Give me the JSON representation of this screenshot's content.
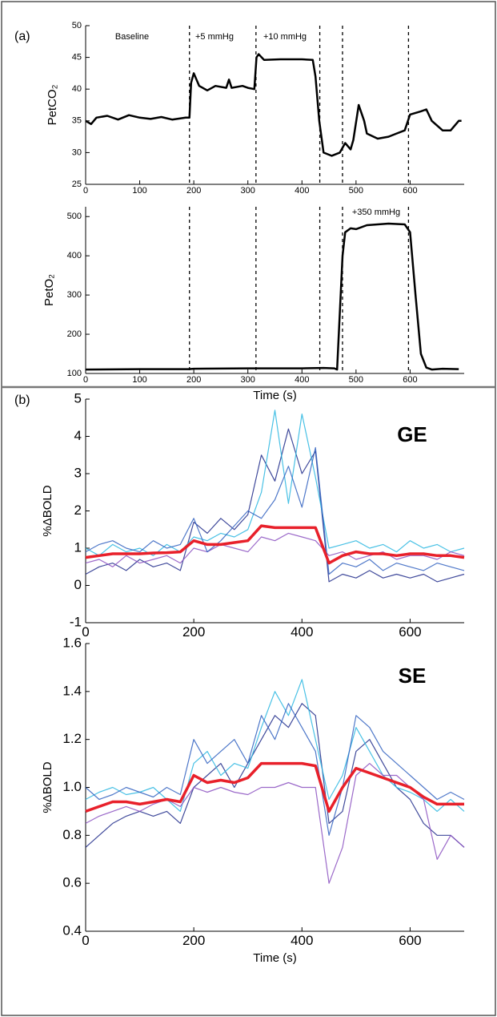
{
  "panel_labels": [
    "(a)",
    "(b)"
  ],
  "chart_data": [
    {
      "type": "line",
      "ylabel": "PetCO₂",
      "annotations": [
        "Baseline",
        "+5 mmHg",
        "+10 mmHg"
      ],
      "x": [
        0,
        10,
        20,
        40,
        60,
        80,
        100,
        120,
        140,
        160,
        185,
        192,
        195,
        200,
        210,
        225,
        240,
        260,
        265,
        270,
        290,
        300,
        312,
        316,
        320,
        330,
        360,
        400,
        420,
        425,
        432,
        440,
        455,
        470,
        480,
        490,
        495,
        505,
        515,
        520,
        540,
        560,
        575,
        590,
        600,
        620,
        630,
        640,
        660,
        675,
        690,
        695
      ],
      "values": [
        35,
        34.5,
        35.5,
        35.8,
        35.2,
        35.9,
        35.5,
        35.3,
        35.6,
        35.2,
        35.5,
        35.5,
        41,
        42.5,
        40.5,
        39.8,
        40.5,
        40.2,
        41.5,
        40.2,
        40.5,
        40.2,
        40,
        45,
        45.5,
        44.6,
        44.7,
        44.7,
        44.6,
        42,
        35,
        30,
        29.5,
        30,
        31.5,
        30.5,
        32,
        37.5,
        35,
        33,
        32.2,
        32.5,
        33,
        33.5,
        36,
        36.5,
        36.8,
        35,
        33.5,
        33.5,
        35,
        35
      ],
      "color": "#000000",
      "vlines": [
        192,
        315,
        433,
        475,
        597
      ],
      "xlim": [
        0,
        700
      ],
      "ylim": [
        25,
        50
      ],
      "xticks": [
        0,
        100,
        200,
        300,
        400,
        500,
        600
      ],
      "yticks": [
        25,
        30,
        35,
        40,
        45,
        50
      ]
    },
    {
      "type": "line",
      "ylabel": "PetO₂",
      "xlabel": "Time (s)",
      "annotations": [
        "+350 mmHg"
      ],
      "x": [
        0,
        100,
        190,
        200,
        300,
        400,
        440,
        460,
        465,
        475,
        480,
        490,
        500,
        520,
        560,
        590,
        600,
        610,
        620,
        630,
        640,
        660,
        690
      ],
      "values": [
        110,
        111,
        111,
        112,
        113,
        113,
        114,
        113,
        110,
        400,
        460,
        470,
        468,
        478,
        482,
        480,
        460,
        300,
        150,
        115,
        110,
        112,
        111
      ],
      "color": "#000000",
      "vlines": [
        192,
        315,
        433,
        475,
        597
      ],
      "xlim": [
        0,
        700
      ],
      "ylim": [
        100,
        525
      ],
      "xticks": [
        0,
        100,
        200,
        300,
        400,
        500,
        600
      ],
      "yticks": [
        100,
        200,
        300,
        400,
        500
      ]
    },
    {
      "type": "line",
      "ylabel": "%ΔBOLD",
      "panel_title": "GE",
      "x": [
        0,
        25,
        50,
        75,
        100,
        125,
        150,
        175,
        200,
        225,
        250,
        275,
        300,
        325,
        350,
        375,
        400,
        425,
        450,
        475,
        500,
        525,
        550,
        575,
        600,
        625,
        650,
        675,
        700
      ],
      "series": [
        {
          "color": "#1f2a8a",
          "values": [
            0.3,
            0.5,
            0.6,
            0.4,
            0.7,
            0.5,
            0.6,
            0.4,
            1.7,
            1.4,
            1.8,
            1.5,
            1.9,
            3.5,
            2.8,
            4.2,
            3.0,
            3.6,
            0.1,
            0.3,
            0.2,
            0.4,
            0.2,
            0.3,
            0.2,
            0.3,
            0.1,
            0.2,
            0.3
          ]
        },
        {
          "color": "#29b6e0",
          "values": [
            1.0,
            0.8,
            1.1,
            0.9,
            1.0,
            0.8,
            1.1,
            0.9,
            1.3,
            1.2,
            1.4,
            1.3,
            1.5,
            2.5,
            4.7,
            2.2,
            4.6,
            2.9,
            1.0,
            1.1,
            1.2,
            1.0,
            1.1,
            0.9,
            1.2,
            1.0,
            1.1,
            0.9,
            1.0
          ]
        },
        {
          "color": "#8a4fbf",
          "values": [
            0.6,
            0.7,
            0.5,
            0.8,
            0.6,
            0.7,
            0.8,
            0.6,
            1.0,
            0.9,
            1.1,
            1.0,
            0.9,
            1.3,
            1.2,
            1.4,
            1.3,
            1.2,
            0.8,
            0.9,
            0.7,
            0.8,
            0.9,
            0.7,
            0.8,
            0.8,
            0.7,
            0.9,
            0.8
          ]
        },
        {
          "color": "#3060c0",
          "values": [
            0.9,
            1.1,
            1.2,
            1.0,
            0.9,
            1.2,
            1.0,
            1.1,
            1.8,
            0.9,
            1.2,
            1.6,
            2.0,
            1.8,
            2.3,
            3.2,
            2.1,
            3.7,
            0.3,
            0.6,
            0.5,
            0.7,
            0.4,
            0.6,
            0.5,
            0.4,
            0.6,
            0.5,
            0.4
          ]
        },
        {
          "color": "#e8202a",
          "values": [
            0.75,
            0.8,
            0.85,
            0.85,
            0.85,
            0.87,
            0.88,
            0.9,
            1.2,
            1.1,
            1.1,
            1.15,
            1.2,
            1.6,
            1.55,
            1.55,
            1.55,
            1.55,
            0.6,
            0.8,
            0.9,
            0.85,
            0.85,
            0.8,
            0.85,
            0.85,
            0.8,
            0.8,
            0.75
          ]
        }
      ],
      "xlim": [
        0,
        700
      ],
      "ylim": [
        -1,
        5
      ],
      "xticks": [
        0,
        200,
        400,
        600
      ],
      "yticks": [
        -1,
        0,
        1,
        2,
        3,
        4,
        5
      ]
    },
    {
      "type": "line",
      "ylabel": "%ΔBOLD",
      "xlabel": "Time (s)",
      "panel_title": "SE",
      "x": [
        0,
        25,
        50,
        75,
        100,
        125,
        150,
        175,
        200,
        225,
        250,
        275,
        300,
        325,
        350,
        375,
        400,
        425,
        450,
        475,
        500,
        525,
        550,
        575,
        600,
        625,
        650,
        675,
        700
      ],
      "series": [
        {
          "color": "#1f2a8a",
          "values": [
            0.75,
            0.8,
            0.85,
            0.88,
            0.9,
            0.88,
            0.9,
            0.85,
            1.0,
            1.05,
            1.1,
            1.0,
            1.1,
            1.2,
            1.3,
            1.25,
            1.35,
            1.3,
            0.85,
            0.9,
            1.15,
            1.2,
            1.1,
            1.0,
            0.95,
            0.85,
            0.8,
            0.8,
            0.75
          ]
        },
        {
          "color": "#29b6e0",
          "values": [
            0.95,
            0.98,
            1.0,
            0.97,
            0.98,
            1.0,
            0.95,
            0.9,
            1.1,
            1.15,
            1.05,
            1.1,
            1.08,
            1.25,
            1.4,
            1.3,
            1.45,
            1.2,
            0.95,
            1.05,
            1.25,
            1.15,
            1.05,
            1.0,
            0.98,
            0.95,
            0.9,
            0.95,
            0.9
          ]
        },
        {
          "color": "#8a4fbf",
          "values": [
            0.85,
            0.88,
            0.9,
            0.92,
            0.9,
            0.93,
            0.95,
            0.92,
            1.0,
            0.98,
            1.0,
            0.98,
            0.97,
            1.0,
            1.0,
            1.02,
            1.0,
            1.0,
            0.6,
            0.75,
            1.05,
            1.1,
            1.05,
            1.05,
            1.0,
            0.95,
            0.7,
            0.8,
            0.75
          ]
        },
        {
          "color": "#3060c0",
          "values": [
            1.0,
            0.95,
            0.97,
            1.0,
            0.98,
            0.96,
            1.0,
            0.97,
            1.2,
            1.1,
            1.15,
            1.2,
            1.1,
            1.3,
            1.2,
            1.35,
            1.25,
            1.15,
            0.8,
            1.0,
            1.3,
            1.25,
            1.15,
            1.1,
            1.05,
            1.0,
            0.95,
            0.98,
            0.95
          ]
        },
        {
          "color": "#e8202a",
          "values": [
            0.9,
            0.92,
            0.94,
            0.94,
            0.93,
            0.94,
            0.95,
            0.94,
            1.05,
            1.02,
            1.03,
            1.02,
            1.04,
            1.1,
            1.1,
            1.1,
            1.1,
            1.09,
            0.9,
            1.0,
            1.08,
            1.06,
            1.04,
            1.02,
            1.0,
            0.96,
            0.93,
            0.93,
            0.93
          ]
        }
      ],
      "xlim": [
        0,
        700
      ],
      "ylim": [
        0.4,
        1.6
      ],
      "xticks": [
        0,
        200,
        400,
        600
      ],
      "yticks": [
        0.4,
        0.6,
        0.8,
        {
          "value": 1,
          "label": "1.0"
        },
        1.2,
        1.4,
        1.6
      ]
    }
  ]
}
